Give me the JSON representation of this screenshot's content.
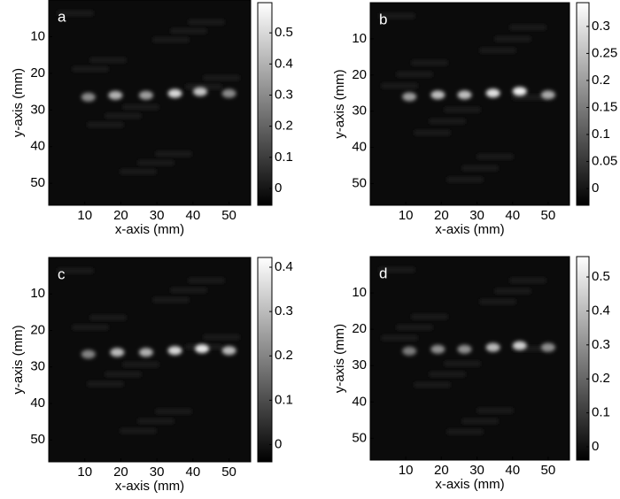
{
  "chart_data": [
    {
      "type": "heatmap",
      "label": "a",
      "x_label": "x-axis (mm)",
      "y_label": "y-axis (mm)",
      "xlim": [
        0,
        56
      ],
      "ylim": [
        0,
        56
      ],
      "xticks": [
        10,
        20,
        30,
        40,
        50
      ],
      "yticks": [
        10,
        20,
        30,
        40,
        50
      ],
      "clim": [
        -0.054,
        0.597
      ],
      "cticks": [
        0,
        0.1,
        0.2,
        0.3,
        0.4,
        0.5
      ],
      "spots": {
        "x": [
          11,
          18.5,
          27,
          35,
          42,
          50
        ],
        "y": [
          26.5,
          26,
          26,
          25.5,
          25,
          25.5
        ],
        "values": [
          0.3,
          0.4,
          0.35,
          0.5,
          0.45,
          0.3
        ]
      }
    },
    {
      "type": "heatmap",
      "label": "b",
      "x_label": "x-axis (mm)",
      "y_label": "y-axis (mm)",
      "xlim": [
        0,
        56
      ],
      "ylim": [
        0,
        56
      ],
      "xticks": [
        10,
        20,
        30,
        40,
        50
      ],
      "yticks": [
        10,
        20,
        30,
        40,
        50
      ],
      "clim": [
        -0.031,
        0.344
      ],
      "cticks": [
        0,
        0.05,
        0.1,
        0.15,
        0.2,
        0.25,
        0.3
      ],
      "spots": {
        "x": [
          11,
          19,
          26.5,
          34.5,
          42,
          50
        ],
        "y": [
          26,
          25.5,
          25.5,
          25,
          24.5,
          25.5
        ],
        "values": [
          0.2,
          0.25,
          0.25,
          0.3,
          0.32,
          0.22
        ]
      }
    },
    {
      "type": "heatmap",
      "label": "c",
      "x_label": "x-axis (mm)",
      "y_label": "y-axis (mm)",
      "xlim": [
        0,
        56
      ],
      "ylim": [
        0,
        56
      ],
      "xticks": [
        10,
        20,
        30,
        40,
        50
      ],
      "yticks": [
        10,
        20,
        30,
        40,
        50
      ],
      "clim": [
        -0.039,
        0.422
      ],
      "cticks": [
        0,
        0.1,
        0.2,
        0.3,
        0.4
      ],
      "spots": {
        "x": [
          11,
          19,
          27,
          35,
          42.5,
          50
        ],
        "y": [
          26.5,
          26,
          26,
          25.5,
          25,
          25.5
        ],
        "values": [
          0.2,
          0.3,
          0.28,
          0.35,
          0.38,
          0.3
        ]
      }
    },
    {
      "type": "heatmap",
      "label": "d",
      "x_label": "x-axis (mm)",
      "y_label": "y-axis (mm)",
      "xlim": [
        0,
        56
      ],
      "ylim": [
        0,
        56
      ],
      "xticks": [
        10,
        20,
        30,
        40,
        50
      ],
      "yticks": [
        10,
        20,
        30,
        40,
        50
      ],
      "clim": [
        -0.039,
        0.56
      ],
      "cticks": [
        0,
        0.1,
        0.2,
        0.3,
        0.4,
        0.5
      ],
      "spots": {
        "x": [
          11,
          19,
          26.5,
          34.5,
          42,
          50
        ],
        "y": [
          26,
          25.5,
          25.5,
          25,
          24.5,
          25
        ],
        "values": [
          0.25,
          0.3,
          0.3,
          0.4,
          0.45,
          0.3
        ]
      }
    }
  ]
}
